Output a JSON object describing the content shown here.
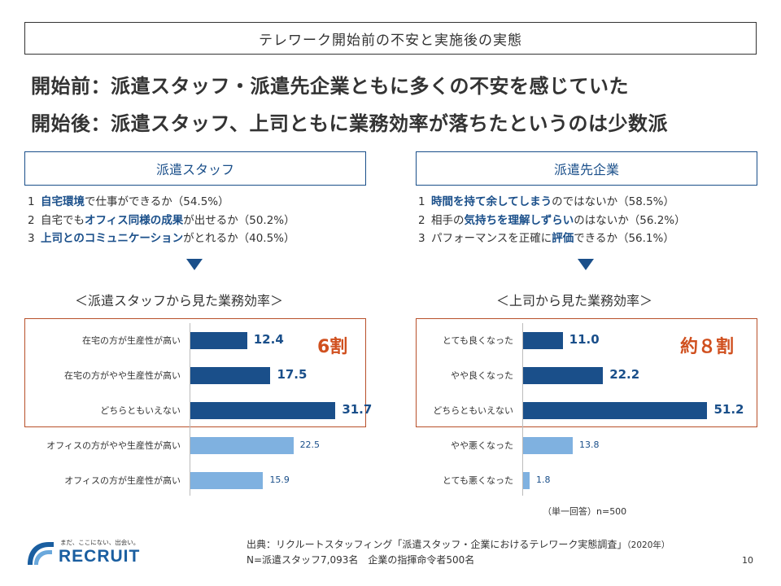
{
  "slide_title": "テレワーク開始前の不安と実施後の実態",
  "headlines": {
    "before": "開始前：派遣スタッフ・派遣先企業ともに多くの不安を感じていた",
    "after": "開始後：派遣スタッフ、上司ともに業務効率が落ちたというのは少数派"
  },
  "left_panel": {
    "header": "派遣スタッフ",
    "concerns": [
      {
        "num": "1",
        "pre": "",
        "hl": "自宅環境",
        "post": "で仕事ができるか（54.5%）"
      },
      {
        "num": "2",
        "pre": "自宅でも",
        "hl": "オフィス同様の成果",
        "post": "が出せるか（50.2%）"
      },
      {
        "num": "3",
        "pre": "",
        "hl": "上司とのコミュニケーション",
        "post": "がとれるか（40.5%）"
      }
    ],
    "chart_title": "＜派遣スタッフから見た業務効率＞",
    "big_label": "6割"
  },
  "right_panel": {
    "header": "派遣先企業",
    "concerns": [
      {
        "num": "1",
        "pre": "",
        "hl": "時間を持て余してしまう",
        "post": "のではないか（58.5%）"
      },
      {
        "num": "2",
        "pre": "相手の",
        "hl": "気持ちを理解しずらい",
        "post": "のはないか（56.2%）"
      },
      {
        "num": "3",
        "pre": "パフォーマンスを正確に",
        "hl": "評価",
        "post": "できるか（56.1%）"
      }
    ],
    "chart_title": "＜上司から見た業務効率＞",
    "big_label": "約８割"
  },
  "colors": {
    "dark_bar": "#1a4f8a",
    "light_bar": "#7fb1e0",
    "accent": "#d0501f",
    "highlight_border": "#b8502a"
  },
  "chart_data": [
    {
      "type": "bar",
      "orientation": "horizontal",
      "title": "＜派遣スタッフから見た業務効率＞",
      "categories": [
        "在宅の方が生産性が高い",
        "在宅の方がやや生産性が高い",
        "どちらともいえない",
        "オフィスの方がやや生産性が高い",
        "オフィスの方が生産性が高い"
      ],
      "values": [
        12.4,
        17.5,
        31.7,
        22.5,
        15.9
      ],
      "value_labels": [
        "12.4",
        "17.5",
        "31.7",
        "22.5",
        "15.9"
      ],
      "emphasis": [
        true,
        true,
        true,
        false,
        false
      ],
      "xlim": [
        0,
        32
      ]
    },
    {
      "type": "bar",
      "orientation": "horizontal",
      "title": "＜上司から見た業務効率＞",
      "categories": [
        "とても良くなった",
        "やや良くなった",
        "どちらともいえない",
        "やや悪くなった",
        "とても悪くなった"
      ],
      "values": [
        11.0,
        22.2,
        51.2,
        13.8,
        1.8
      ],
      "value_labels": [
        "11.0",
        "22.2",
        "51.2",
        "13.8",
        "1.8"
      ],
      "emphasis": [
        true,
        true,
        true,
        false,
        false
      ],
      "xlim": [
        0,
        52
      ]
    }
  ],
  "note": "（単一回答）n=500",
  "source": {
    "line1_main": "出典：リクルートスタッフィング「派遣スタッフ・企業におけるテレワーク実態調査」",
    "line1_year": "（2020年）",
    "line2": "N=派遣スタッフ7,093名　企業の指揮命令者500名"
  },
  "logo": {
    "tagline": "まだ、ここにない、出会い。",
    "brand": "RECRUIT"
  },
  "page_number": "10"
}
